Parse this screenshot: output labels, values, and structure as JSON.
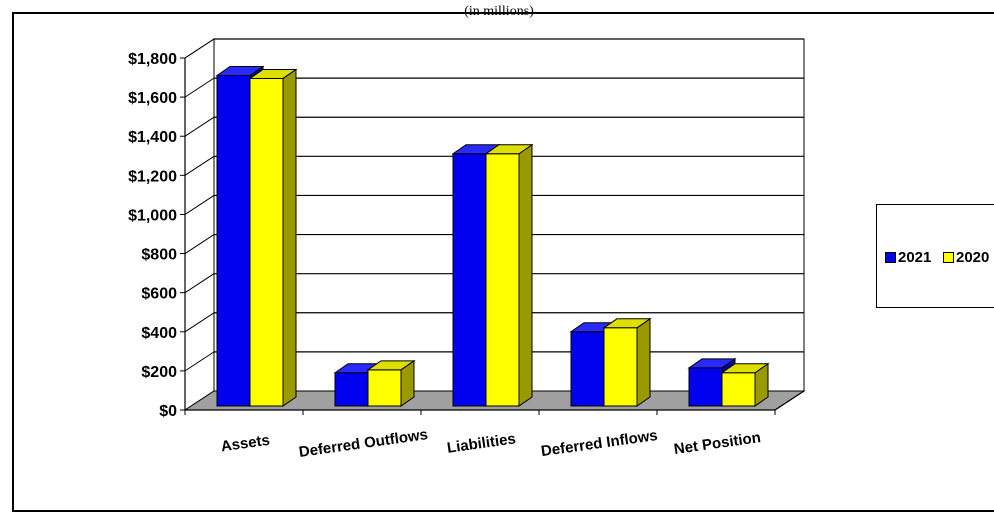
{
  "header": {
    "text": "(in millions)"
  },
  "colors": {
    "series_2021": "#0000ee",
    "series_2021_side": "#00009a",
    "series_2021_top": "#2a2aff",
    "series_2020": "#ffff00",
    "series_2020_side": "#9a9a00",
    "series_2020_top": "#dede00",
    "floor": "#a0a0a0",
    "grid": "#000000"
  },
  "legend": {
    "placement": "right",
    "items": [
      {
        "label": "2021"
      },
      {
        "label": "2020"
      }
    ]
  },
  "chart_data": {
    "type": "bar",
    "title": "",
    "xlabel": "",
    "ylabel": "",
    "ylim": [
      0,
      1800
    ],
    "yticks": [
      0,
      200,
      400,
      600,
      800,
      1000,
      1200,
      1400,
      1600,
      1800
    ],
    "ytick_labels": [
      "$0",
      "$200",
      "$400",
      "$600",
      "$800",
      "$1,000",
      "$1,200",
      "$1,400",
      "$1,600",
      "$1,800"
    ],
    "categories": [
      "Assets",
      "Deferred Outflows",
      "Liabilities",
      "Deferred Inflows",
      "Net Position"
    ],
    "series": [
      {
        "name": "2021",
        "values": [
          1690,
          170,
          1290,
          380,
          195
        ]
      },
      {
        "name": "2020",
        "values": [
          1675,
          185,
          1290,
          400,
          170
        ]
      }
    ],
    "grid": true,
    "three_d": true
  }
}
